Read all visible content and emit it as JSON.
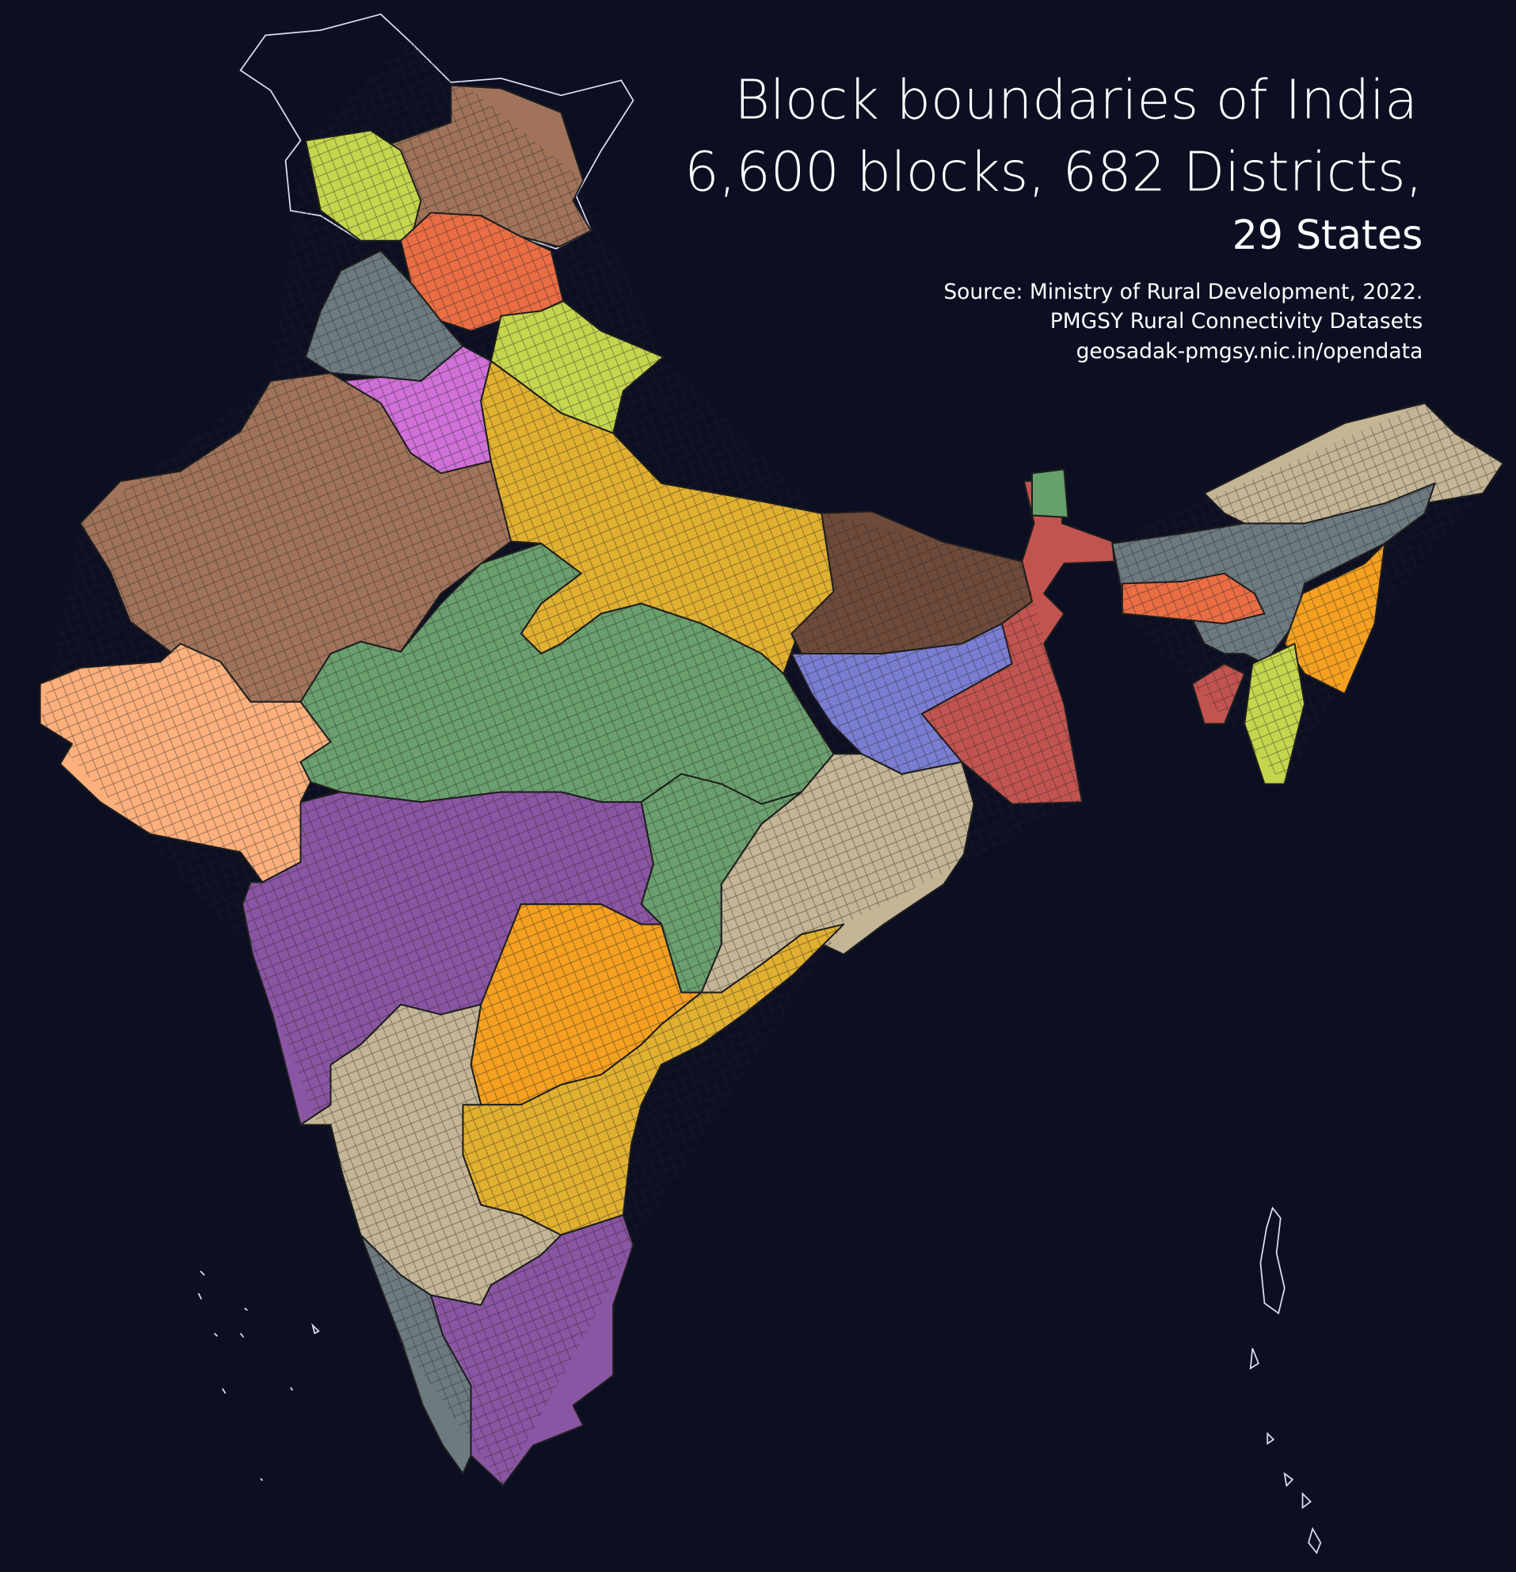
{
  "header": {
    "title": "Block boundaries of India",
    "subtitle": "6,600 blocks, 682 Districts,",
    "subtitle2": "29 States"
  },
  "source": {
    "lines": [
      "Source: Ministry of Rural Development, 2022.",
      "PMGSY Rural Connectivity Datasets",
      "geosadak-pmgsy.nic.in/opendata"
    ]
  }
}
